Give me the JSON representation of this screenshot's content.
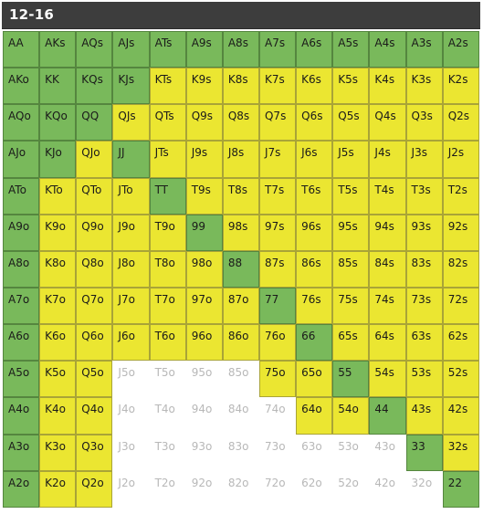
{
  "header": {
    "title": "12-16"
  },
  "colors": {
    "raise": "#79b95b",
    "call": "#ebe631",
    "fold": "#ffffff"
  },
  "rows": [
    [
      "AA",
      "AKs",
      "AQs",
      "AJs",
      "ATs",
      "A9s",
      "A8s",
      "A7s",
      "A6s",
      "A5s",
      "A4s",
      "A3s",
      "A2s"
    ],
    [
      "AKo",
      "KK",
      "KQs",
      "KJs",
      "KTs",
      "K9s",
      "K8s",
      "K7s",
      "K6s",
      "K5s",
      "K4s",
      "K3s",
      "K2s"
    ],
    [
      "AQo",
      "KQo",
      "QQ",
      "QJs",
      "QTs",
      "Q9s",
      "Q8s",
      "Q7s",
      "Q6s",
      "Q5s",
      "Q4s",
      "Q3s",
      "Q2s"
    ],
    [
      "AJo",
      "KJo",
      "QJo",
      "JJ",
      "JTs",
      "J9s",
      "J8s",
      "J7s",
      "J6s",
      "J5s",
      "J4s",
      "J3s",
      "J2s"
    ],
    [
      "ATo",
      "KTo",
      "QTo",
      "JTo",
      "TT",
      "T9s",
      "T8s",
      "T7s",
      "T6s",
      "T5s",
      "T4s",
      "T3s",
      "T2s"
    ],
    [
      "A9o",
      "K9o",
      "Q9o",
      "J9o",
      "T9o",
      "99",
      "98s",
      "97s",
      "96s",
      "95s",
      "94s",
      "93s",
      "92s"
    ],
    [
      "A8o",
      "K8o",
      "Q8o",
      "J8o",
      "T8o",
      "98o",
      "88",
      "87s",
      "86s",
      "85s",
      "84s",
      "83s",
      "82s"
    ],
    [
      "A7o",
      "K7o",
      "Q7o",
      "J7o",
      "T7o",
      "97o",
      "87o",
      "77",
      "76s",
      "75s",
      "74s",
      "73s",
      "72s"
    ],
    [
      "A6o",
      "K6o",
      "Q6o",
      "J6o",
      "T6o",
      "96o",
      "86o",
      "76o",
      "66",
      "65s",
      "64s",
      "63s",
      "62s"
    ],
    [
      "A5o",
      "K5o",
      "Q5o",
      "J5o",
      "T5o",
      "95o",
      "85o",
      "75o",
      "65o",
      "55",
      "54s",
      "53s",
      "52s"
    ],
    [
      "A4o",
      "K4o",
      "Q4o",
      "J4o",
      "T4o",
      "94o",
      "84o",
      "74o",
      "64o",
      "54o",
      "44",
      "43s",
      "42s"
    ],
    [
      "A3o",
      "K3o",
      "Q3o",
      "J3o",
      "T3o",
      "93o",
      "83o",
      "73o",
      "63o",
      "53o",
      "43o",
      "33",
      "32s"
    ],
    [
      "A2o",
      "K2o",
      "Q2o",
      "J2o",
      "T2o",
      "92o",
      "82o",
      "72o",
      "62o",
      "52o",
      "42o",
      "32o",
      "22"
    ]
  ],
  "actions": [
    [
      "R",
      "R",
      "R",
      "R",
      "R",
      "R",
      "R",
      "R",
      "R",
      "R",
      "R",
      "R",
      "R"
    ],
    [
      "R",
      "R",
      "R",
      "R",
      "C",
      "C",
      "C",
      "C",
      "C",
      "C",
      "C",
      "C",
      "C"
    ],
    [
      "R",
      "R",
      "R",
      "C",
      "C",
      "C",
      "C",
      "C",
      "C",
      "C",
      "C",
      "C",
      "C"
    ],
    [
      "R",
      "R",
      "C",
      "R",
      "C",
      "C",
      "C",
      "C",
      "C",
      "C",
      "C",
      "C",
      "C"
    ],
    [
      "R",
      "C",
      "C",
      "C",
      "R",
      "C",
      "C",
      "C",
      "C",
      "C",
      "C",
      "C",
      "C"
    ],
    [
      "R",
      "C",
      "C",
      "C",
      "C",
      "R",
      "C",
      "C",
      "C",
      "C",
      "C",
      "C",
      "C"
    ],
    [
      "R",
      "C",
      "C",
      "C",
      "C",
      "C",
      "R",
      "C",
      "C",
      "C",
      "C",
      "C",
      "C"
    ],
    [
      "R",
      "C",
      "C",
      "C",
      "C",
      "C",
      "C",
      "R",
      "C",
      "C",
      "C",
      "C",
      "C"
    ],
    [
      "R",
      "C",
      "C",
      "C",
      "C",
      "C",
      "C",
      "C",
      "R",
      "C",
      "C",
      "C",
      "C"
    ],
    [
      "R",
      "C",
      "C",
      "F",
      "F",
      "F",
      "F",
      "C",
      "C",
      "R",
      "C",
      "C",
      "C"
    ],
    [
      "R",
      "C",
      "C",
      "F",
      "F",
      "F",
      "F",
      "F",
      "C",
      "C",
      "R",
      "C",
      "C"
    ],
    [
      "R",
      "C",
      "C",
      "F",
      "F",
      "F",
      "F",
      "F",
      "F",
      "F",
      "F",
      "R",
      "C"
    ],
    [
      "R",
      "C",
      "C",
      "F",
      "F",
      "F",
      "F",
      "F",
      "F",
      "F",
      "F",
      "F",
      "R"
    ]
  ]
}
